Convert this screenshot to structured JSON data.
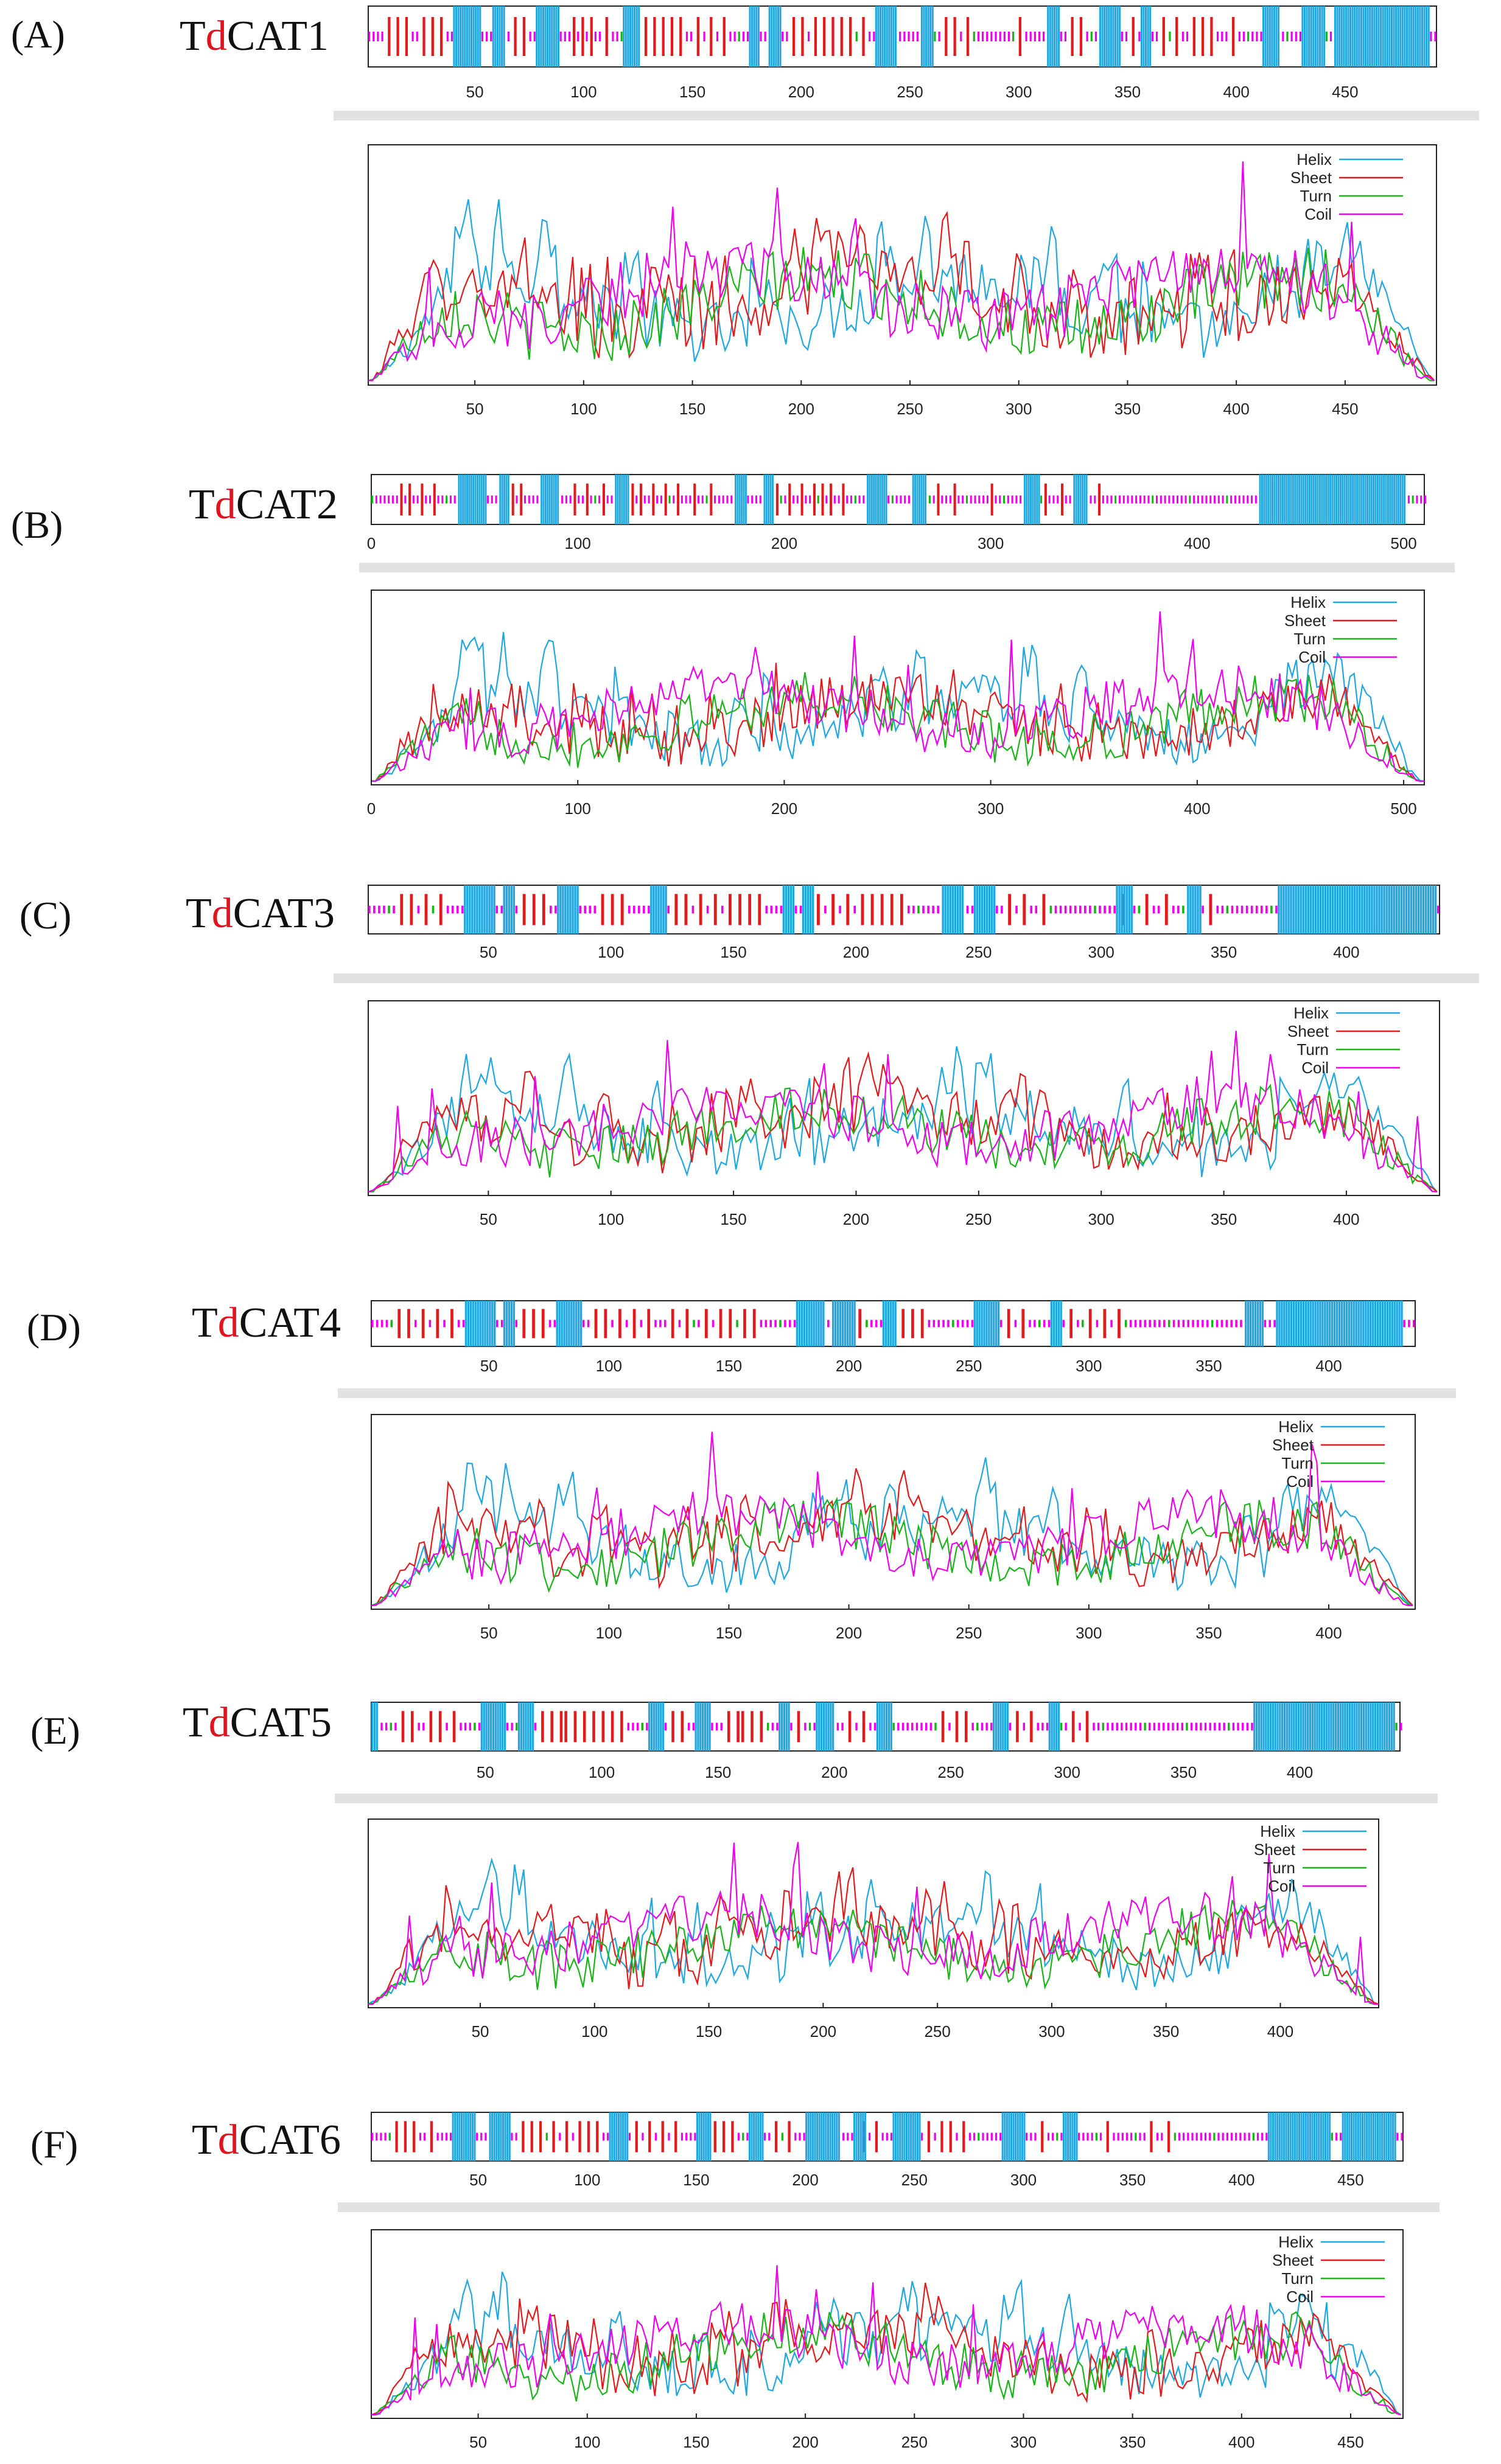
{
  "colors": {
    "helix": "#1ea7e0",
    "sheet": "#e31a1c",
    "turn": "#18b418",
    "coil": "#ee00ee",
    "highlight": "#e0141e",
    "divider": "#e2e2e2"
  },
  "legend": [
    "Helix",
    "Sheet",
    "Turn",
    "Coil"
  ],
  "panels": [
    {
      "label": "(A)",
      "title_pre": "T",
      "title_hi": "d",
      "title_post": "CAT1"
    },
    {
      "label": "(B)",
      "title_pre": "T",
      "title_hi": "d",
      "title_post": "CAT2"
    },
    {
      "label": "(C)",
      "title_pre": "T",
      "title_hi": "d",
      "title_post": "CAT3"
    },
    {
      "label": "(D)",
      "title_pre": "T",
      "title_hi": "d",
      "title_post": "CAT4"
    },
    {
      "label": "(E)",
      "title_pre": "T",
      "title_hi": "d",
      "title_post": "CAT5"
    },
    {
      "label": "(F)",
      "title_pre": "T",
      "title_hi": "d",
      "title_post": "CAT6"
    }
  ],
  "chart_data": [
    {
      "type": "line",
      "title": "TdCAT1",
      "length": 492,
      "xlim": [
        1,
        492
      ],
      "ylim": [
        0,
        1
      ],
      "xticks": [
        50,
        100,
        150,
        200,
        250,
        300,
        350,
        400,
        450
      ],
      "series_names": [
        "Helix",
        "Sheet",
        "Turn",
        "Coil"
      ],
      "helix_ranges": [
        [
          40,
          52
        ],
        [
          58,
          63
        ],
        [
          78,
          88
        ],
        [
          118,
          125
        ],
        [
          176,
          180
        ],
        [
          185,
          190
        ],
        [
          234,
          243
        ],
        [
          255,
          260
        ],
        [
          313,
          318
        ],
        [
          337,
          346
        ],
        [
          356,
          360
        ],
        [
          412,
          419
        ],
        [
          430,
          440
        ],
        [
          445,
          488
        ]
      ],
      "sheet_positions": [
        10,
        14,
        18,
        26,
        30,
        34,
        68,
        72,
        95,
        99,
        103,
        110,
        128,
        132,
        136,
        140,
        144,
        152,
        158,
        164,
        196,
        200,
        206,
        210,
        214,
        218,
        222,
        228,
        266,
        270,
        276,
        300,
        324,
        328,
        352,
        366,
        372,
        380,
        384,
        388,
        398
      ]
    },
    {
      "type": "line",
      "title": "TdCAT2",
      "length": 510,
      "xlim": [
        0,
        510
      ],
      "ylim": [
        0,
        1
      ],
      "xticks": [
        0,
        100,
        200,
        300,
        400,
        500
      ],
      "series_names": [
        "Helix",
        "Sheet",
        "Turn",
        "Coil"
      ],
      "helix_ranges": [
        [
          42,
          55
        ],
        [
          62,
          66
        ],
        [
          82,
          90
        ],
        [
          118,
          124
        ],
        [
          176,
          181
        ],
        [
          190,
          194
        ],
        [
          240,
          249
        ],
        [
          262,
          268
        ],
        [
          316,
          323
        ],
        [
          340,
          346
        ],
        [
          430,
          500
        ]
      ],
      "sheet_positions": [
        14,
        18,
        24,
        30,
        68,
        72,
        98,
        104,
        112,
        126,
        130,
        136,
        142,
        148,
        156,
        164,
        196,
        202,
        208,
        214,
        218,
        222,
        228,
        274,
        282,
        300,
        326,
        334,
        352
      ]
    },
    {
      "type": "line",
      "title": "TdCAT3",
      "length": 438,
      "xlim": [
        1,
        438
      ],
      "ylim": [
        0,
        1
      ],
      "xticks": [
        50,
        100,
        150,
        200,
        250,
        300,
        350,
        400
      ],
      "series_names": [
        "Helix",
        "Sheet",
        "Turn",
        "Coil"
      ],
      "helix_ranges": [
        [
          40,
          52
        ],
        [
          56,
          60
        ],
        [
          78,
          86
        ],
        [
          116,
          122
        ],
        [
          170,
          174
        ],
        [
          178,
          182
        ],
        [
          235,
          243
        ],
        [
          248,
          256
        ],
        [
          306,
          312
        ],
        [
          335,
          340
        ],
        [
          372,
          436
        ]
      ],
      "sheet_positions": [
        14,
        18,
        24,
        30,
        64,
        68,
        72,
        96,
        100,
        104,
        126,
        130,
        136,
        142,
        148,
        152,
        156,
        160,
        184,
        190,
        196,
        202,
        206,
        210,
        214,
        218,
        262,
        268,
        276,
        308,
        318,
        326,
        344
      ]
    },
    {
      "type": "line",
      "title": "TdCAT4",
      "length": 436,
      "xlim": [
        1,
        436
      ],
      "ylim": [
        0,
        1
      ],
      "xticks": [
        50,
        100,
        150,
        200,
        250,
        300,
        350,
        400
      ],
      "series_names": [
        "Helix",
        "Sheet",
        "Turn",
        "Coil"
      ],
      "helix_ranges": [
        [
          40,
          52
        ],
        [
          56,
          60
        ],
        [
          78,
          88
        ],
        [
          178,
          189
        ],
        [
          193,
          202
        ],
        [
          214,
          219
        ],
        [
          252,
          262
        ],
        [
          284,
          288
        ],
        [
          365,
          372
        ],
        [
          378,
          430
        ]
      ],
      "sheet_positions": [
        12,
        16,
        22,
        28,
        34,
        64,
        68,
        72,
        94,
        98,
        104,
        110,
        116,
        126,
        132,
        140,
        146,
        150,
        156,
        160,
        204,
        222,
        226,
        230,
        266,
        272,
        292,
        300,
        306,
        312
      ]
    },
    {
      "type": "line",
      "title": "TdCAT5",
      "length": 443,
      "xlim": [
        1,
        443
      ],
      "ylim": [
        0,
        1
      ],
      "xticks": [
        50,
        100,
        150,
        200,
        250,
        300,
        350,
        400
      ],
      "series_names": [
        "Helix",
        "Sheet",
        "Turn",
        "Coil"
      ],
      "helix_ranges": [
        [
          1,
          3
        ],
        [
          48,
          58
        ],
        [
          64,
          70
        ],
        [
          120,
          126
        ],
        [
          140,
          146
        ],
        [
          176,
          180
        ],
        [
          192,
          199
        ],
        [
          218,
          224
        ],
        [
          268,
          274
        ],
        [
          292,
          296
        ],
        [
          380,
          440
        ]
      ],
      "sheet_positions": [
        14,
        18,
        26,
        30,
        36,
        74,
        78,
        82,
        84,
        88,
        92,
        96,
        100,
        104,
        108,
        130,
        134,
        154,
        158,
        160,
        164,
        168,
        184,
        206,
        212,
        246,
        252,
        256,
        278,
        284,
        302,
        308
      ]
    },
    {
      "type": "line",
      "title": "TdCAT6",
      "length": 474,
      "xlim": [
        1,
        474
      ],
      "ylim": [
        0,
        1
      ],
      "xticks": [
        50,
        100,
        150,
        200,
        250,
        300,
        350,
        400,
        450
      ],
      "series_names": [
        "Helix",
        "Sheet",
        "Turn",
        "Coil"
      ],
      "helix_ranges": [
        [
          38,
          48
        ],
        [
          55,
          64
        ],
        [
          110,
          118
        ],
        [
          150,
          156
        ],
        [
          174,
          180
        ],
        [
          200,
          215
        ],
        [
          222,
          227
        ],
        [
          240,
          252
        ],
        [
          290,
          300
        ],
        [
          318,
          324
        ],
        [
          412,
          440
        ],
        [
          446,
          470
        ]
      ],
      "sheet_positions": [
        12,
        16,
        20,
        28,
        70,
        74,
        78,
        84,
        90,
        96,
        100,
        104,
        122,
        128,
        134,
        140,
        158,
        162,
        166,
        186,
        192,
        226,
        232,
        256,
        262,
        266,
        272,
        308,
        338,
        358,
        366
      ]
    }
  ]
}
